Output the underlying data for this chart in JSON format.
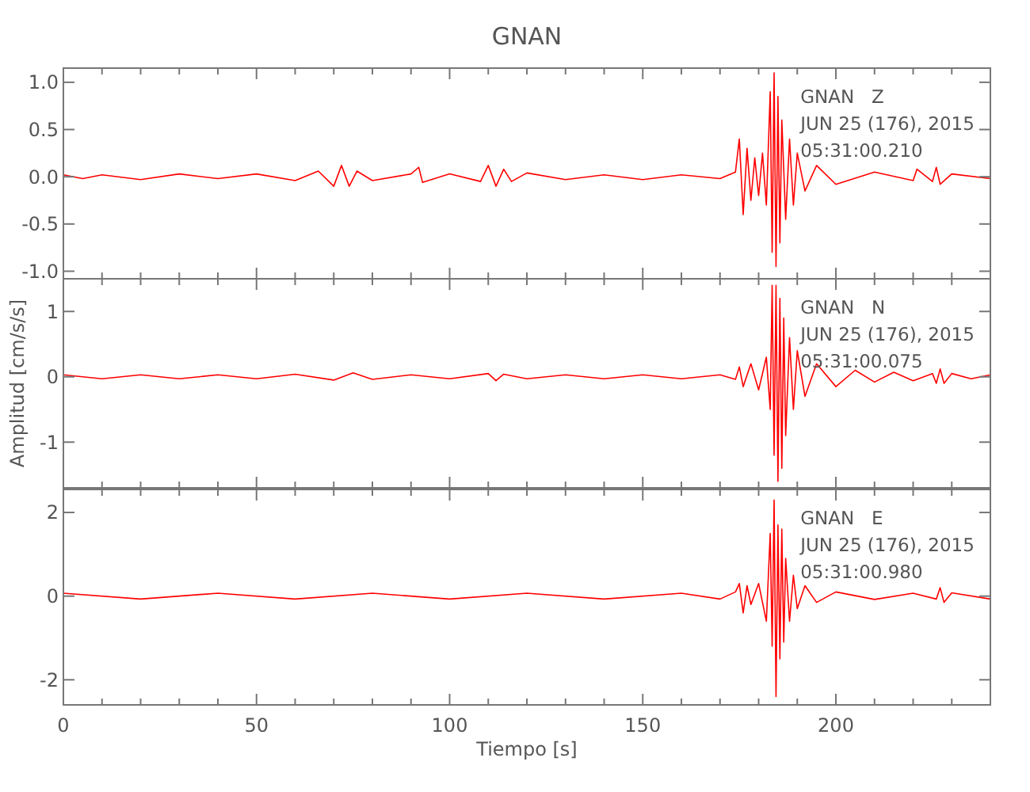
{
  "chart_data": [
    {
      "type": "line",
      "title": "GNAN",
      "xlim": [
        0,
        240
      ],
      "ylim": [
        -1.08,
        1.15
      ],
      "tick_labels": "y",
      "grid": false,
      "marker": "none",
      "line_style": "solid",
      "xticks": [
        0,
        {
          "value": 10,
          "label": null
        },
        {
          "value": 20,
          "label": null
        },
        {
          "value": 30,
          "label": null
        },
        {
          "value": 40,
          "label": null
        },
        50,
        {
          "value": 60,
          "label": null
        },
        {
          "value": 70,
          "label": null
        },
        {
          "value": 80,
          "label": null
        },
        {
          "value": 90,
          "label": null
        },
        100,
        {
          "value": 110,
          "label": null
        },
        {
          "value": 120,
          "label": null
        },
        {
          "value": 130,
          "label": null
        },
        {
          "value": 140,
          "label": null
        },
        150,
        {
          "value": 160,
          "label": null
        },
        {
          "value": 170,
          "label": null
        },
        {
          "value": 180,
          "label": null
        },
        {
          "value": 190,
          "label": null
        },
        200,
        {
          "value": 210,
          "label": null
        },
        {
          "value": 220,
          "label": null
        },
        {
          "value": 230,
          "label": null
        }
      ],
      "yticks": [
        {
          "value": -1,
          "label": "-1.0"
        },
        -0.5,
        {
          "value": 0,
          "label": "0.0"
        },
        0.5,
        {
          "value": 1,
          "label": "1.0"
        }
      ],
      "annotations": [
        "GNAN   Z",
        "JUN 25 (176), 2015",
        "05:31:00.210"
      ],
      "series": [
        {
          "color": "#ff0000",
          "x": [
            0,
            5,
            10,
            20,
            30,
            40,
            50,
            60,
            66,
            70,
            72,
            74,
            76,
            80,
            90,
            92,
            93,
            100,
            108,
            110,
            112,
            114,
            116,
            120,
            130,
            140,
            150,
            160,
            170,
            174,
            175,
            176,
            177,
            178,
            179,
            180,
            181,
            182,
            183,
            183.5,
            184,
            184.5,
            185,
            185.5,
            186,
            187,
            188,
            189,
            190,
            192,
            195,
            200,
            210,
            220,
            221,
            225,
            226,
            227,
            230,
            240
          ],
          "values": [
            0.02,
            -0.02,
            0.02,
            -0.03,
            0.03,
            -0.02,
            0.03,
            -0.04,
            0.06,
            -0.1,
            0.12,
            -0.1,
            0.06,
            -0.04,
            0.03,
            0.1,
            -0.06,
            0.03,
            -0.05,
            0.12,
            -0.1,
            0.08,
            -0.05,
            0.04,
            -0.03,
            0.02,
            -0.03,
            0.02,
            -0.02,
            0.05,
            0.4,
            -0.4,
            0.3,
            -0.25,
            0.2,
            -0.2,
            0.25,
            -0.3,
            0.9,
            -0.8,
            1.1,
            -0.95,
            0.85,
            -0.7,
            0.6,
            -0.45,
            0.4,
            -0.3,
            0.25,
            -0.15,
            0.12,
            -0.08,
            0.05,
            -0.04,
            0.08,
            -0.05,
            0.1,
            -0.08,
            0.03,
            -0.02
          ]
        }
      ]
    },
    {
      "type": "line",
      "ylabel": "Amplitud [cm/s/s]",
      "xlim": [
        0,
        240
      ],
      "ylim": [
        -1.7,
        1.5
      ],
      "tick_labels": "y",
      "grid": false,
      "marker": "none",
      "line_style": "solid",
      "xticks": [
        0,
        {
          "value": 10,
          "label": null
        },
        {
          "value": 20,
          "label": null
        },
        {
          "value": 30,
          "label": null
        },
        {
          "value": 40,
          "label": null
        },
        50,
        {
          "value": 60,
          "label": null
        },
        {
          "value": 70,
          "label": null
        },
        {
          "value": 80,
          "label": null
        },
        {
          "value": 90,
          "label": null
        },
        100,
        {
          "value": 110,
          "label": null
        },
        {
          "value": 120,
          "label": null
        },
        {
          "value": 130,
          "label": null
        },
        {
          "value": 140,
          "label": null
        },
        150,
        {
          "value": 160,
          "label": null
        },
        {
          "value": 170,
          "label": null
        },
        {
          "value": 180,
          "label": null
        },
        {
          "value": 190,
          "label": null
        },
        200,
        {
          "value": 210,
          "label": null
        },
        {
          "value": 220,
          "label": null
        },
        {
          "value": 230,
          "label": null
        }
      ],
      "yticks": [
        -1,
        0,
        1
      ],
      "annotations": [
        "GNAN   N",
        "JUN 25 (176), 2015",
        "05:31:00.075"
      ],
      "series": [
        {
          "color": "#ff0000",
          "x": [
            0,
            10,
            20,
            30,
            40,
            50,
            60,
            70,
            75,
            80,
            90,
            100,
            110,
            112,
            114,
            120,
            130,
            140,
            150,
            160,
            170,
            174,
            175,
            176,
            178,
            180,
            182,
            183,
            183.5,
            184,
            184.5,
            185,
            185.5,
            186,
            186.5,
            187,
            188,
            189,
            190,
            192,
            195,
            200,
            205,
            210,
            215,
            220,
            225,
            226,
            227,
            228,
            230,
            235,
            240
          ],
          "values": [
            0.03,
            -0.03,
            0.03,
            -0.03,
            0.03,
            -0.03,
            0.04,
            -0.05,
            0.06,
            -0.04,
            0.03,
            -0.03,
            0.05,
            -0.06,
            0.04,
            -0.03,
            0.03,
            -0.03,
            0.03,
            -0.03,
            0.03,
            -0.04,
            0.15,
            -0.15,
            0.2,
            -0.2,
            0.3,
            -0.5,
            1.4,
            -1.2,
            1.4,
            -1.6,
            1.2,
            -1.4,
            0.9,
            -0.9,
            0.6,
            -0.5,
            0.4,
            -0.3,
            0.2,
            -0.15,
            0.1,
            -0.08,
            0.07,
            -0.06,
            0.05,
            -0.1,
            0.12,
            -0.1,
            0.05,
            -0.03,
            0.03
          ]
        }
      ]
    },
    {
      "type": "line",
      "xlabel": "Tiempo [s]",
      "xlim": [
        0,
        240
      ],
      "ylim": [
        -2.6,
        2.55
      ],
      "grid": false,
      "marker": "none",
      "line_style": "solid",
      "xticks": [
        0,
        {
          "value": 10,
          "label": null
        },
        {
          "value": 20,
          "label": null
        },
        {
          "value": 30,
          "label": null
        },
        {
          "value": 40,
          "label": null
        },
        50,
        {
          "value": 60,
          "label": null
        },
        {
          "value": 70,
          "label": null
        },
        {
          "value": 80,
          "label": null
        },
        {
          "value": 90,
          "label": null
        },
        100,
        {
          "value": 110,
          "label": null
        },
        {
          "value": 120,
          "label": null
        },
        {
          "value": 130,
          "label": null
        },
        {
          "value": 140,
          "label": null
        },
        150,
        {
          "value": 160,
          "label": null
        },
        {
          "value": 170,
          "label": null
        },
        {
          "value": 180,
          "label": null
        },
        {
          "value": 190,
          "label": null
        },
        200,
        {
          "value": 210,
          "label": null
        },
        {
          "value": 220,
          "label": null
        },
        {
          "value": 230,
          "label": null
        }
      ],
      "yticks": [
        -2,
        0,
        2
      ],
      "annotations": [
        "GNAN   E",
        "JUN 25 (176), 2015",
        "05:31:00.980"
      ],
      "series": [
        {
          "color": "#ff0000",
          "x": [
            0,
            20,
            40,
            60,
            80,
            100,
            120,
            140,
            160,
            170,
            174,
            175,
            176,
            177,
            178,
            180,
            182,
            183,
            183.5,
            184,
            184.5,
            185,
            185.5,
            186,
            186.5,
            187,
            188,
            189,
            190,
            192,
            195,
            200,
            210,
            220,
            226,
            227,
            228,
            230,
            240
          ],
          "values": [
            0.07,
            -0.07,
            0.07,
            -0.07,
            0.07,
            -0.07,
            0.07,
            -0.07,
            0.07,
            -0.07,
            0.1,
            0.3,
            -0.4,
            0.25,
            -0.2,
            0.3,
            -0.6,
            1.5,
            -1.2,
            2.3,
            -2.4,
            1.7,
            -1.5,
            1.6,
            -1.1,
            0.9,
            -0.6,
            0.5,
            -0.3,
            0.25,
            -0.15,
            0.1,
            -0.08,
            0.07,
            -0.07,
            0.2,
            -0.15,
            0.08,
            -0.07
          ]
        }
      ]
    }
  ]
}
